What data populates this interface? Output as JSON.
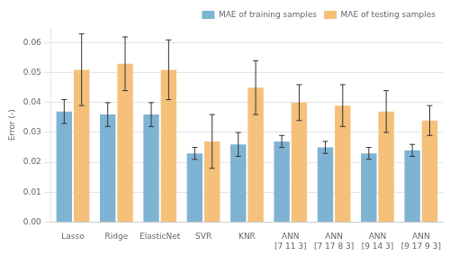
{
  "chart_data": {
    "type": "bar",
    "categories": [
      "Lasso",
      "Ridge",
      "ElasticNet",
      "SVR",
      "KNR",
      "ANN\n[7 11 3]",
      "ANN\n[7 17 8 3]",
      "ANN\n[9 14 3]",
      "ANN\n[9 17 9 3]"
    ],
    "series": [
      {
        "name": "MAE of training samples",
        "color": "#7fb3d3",
        "values": [
          0.037,
          0.036,
          0.036,
          0.023,
          0.026,
          0.027,
          0.025,
          0.023,
          0.024
        ],
        "errors": [
          0.004,
          0.004,
          0.004,
          0.002,
          0.004,
          0.002,
          0.002,
          0.002,
          0.002
        ]
      },
      {
        "name": "MAE of testing samples",
        "color": "#f5c07a",
        "values": [
          0.051,
          0.053,
          0.051,
          0.027,
          0.045,
          0.04,
          0.039,
          0.037,
          0.034
        ],
        "errors": [
          0.012,
          0.009,
          0.01,
          0.009,
          0.009,
          0.006,
          0.007,
          0.007,
          0.005
        ]
      }
    ],
    "y_label": "Error (-)",
    "ylim": [
      0.0,
      0.065
    ],
    "yticks": [
      {
        "value": 0.0,
        "label": "0.00"
      },
      0.01,
      0.02,
      0.03,
      0.04,
      0.05,
      0.06
    ],
    "grid": true,
    "legend": "upper right"
  }
}
